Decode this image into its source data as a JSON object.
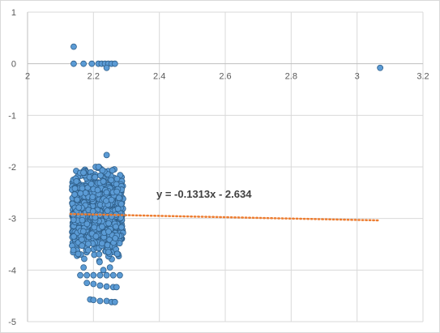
{
  "chart_data": {
    "type": "scatter",
    "title": "",
    "xlabel": "",
    "ylabel": "",
    "xlim": [
      2,
      3.2
    ],
    "ylim": [
      -5,
      1
    ],
    "x_ticks": [
      "2",
      "2.2",
      "2.4",
      "2.6",
      "2.8",
      "3",
      "3.2"
    ],
    "y_ticks": [
      "1",
      "0",
      "-1",
      "-2",
      "-3",
      "-4",
      "-5"
    ],
    "grid": true,
    "legend": "none",
    "colors": {
      "point_fill": "#5b9bd5",
      "point_edge": "#2f5f8a",
      "trendline": "#ed7d31",
      "grid": "#d9d9d9",
      "axis": "#bfbfbf"
    },
    "series": [
      {
        "points_top": [
          [
            2.14,
            0.33
          ],
          [
            2.14,
            0.0
          ],
          [
            2.17,
            0.0
          ],
          [
            2.195,
            0.0
          ],
          [
            2.215,
            0.0
          ],
          [
            2.225,
            0.0
          ],
          [
            2.235,
            0.0
          ],
          [
            2.245,
            0.0
          ],
          [
            2.255,
            0.0
          ],
          [
            2.265,
            0.0
          ],
          [
            2.24,
            -0.08
          ],
          [
            3.07,
            -0.08
          ]
        ],
        "cluster": {
          "x_range": [
            2.135,
            2.29
          ],
          "y_range": [
            -4.0,
            -2.0
          ],
          "count": 1200,
          "y_center": -2.9
        },
        "points_outliers": [
          [
            2.24,
            -1.77
          ],
          [
            2.16,
            -4.1
          ],
          [
            2.18,
            -4.1
          ],
          [
            2.2,
            -4.1
          ],
          [
            2.22,
            -4.1
          ],
          [
            2.24,
            -4.1
          ],
          [
            2.26,
            -4.1
          ],
          [
            2.28,
            -4.1
          ],
          [
            2.18,
            -4.25
          ],
          [
            2.2,
            -4.27
          ],
          [
            2.22,
            -4.3
          ],
          [
            2.24,
            -4.32
          ],
          [
            2.26,
            -4.33
          ],
          [
            2.27,
            -4.33
          ],
          [
            2.19,
            -4.57
          ],
          [
            2.2,
            -4.58
          ],
          [
            2.22,
            -4.6
          ],
          [
            2.24,
            -4.6
          ],
          [
            2.255,
            -4.62
          ],
          [
            2.265,
            -4.62
          ],
          [
            2.23,
            -4.0
          ],
          [
            2.25,
            -3.95
          ],
          [
            2.17,
            -3.95
          ]
        ]
      }
    ],
    "trendline": {
      "slope": -0.1313,
      "intercept": -2.634,
      "x_from": 2.13,
      "x_to": 3.07,
      "label": "y = -0.1313x - 2.634"
    }
  }
}
